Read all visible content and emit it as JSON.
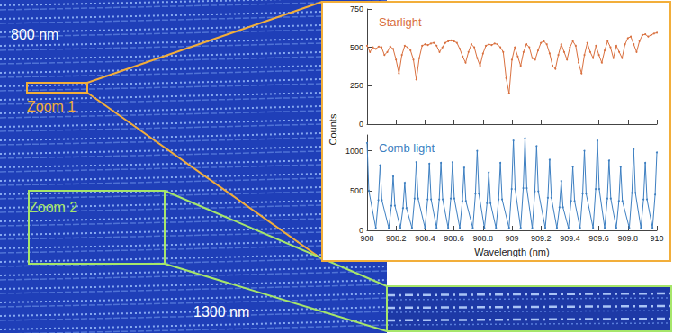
{
  "image": {
    "labels": [
      {
        "text": "800 nm",
        "color": "#ffffff"
      },
      {
        "text": "Zoom 1",
        "color": "#f2ae3a"
      },
      {
        "text": "Zoom 2",
        "color": "#a6e66a"
      },
      {
        "text": "1300 nm",
        "color": "#ffffff"
      }
    ]
  },
  "ylabel": "Counts",
  "chart_data": [
    {
      "type": "line",
      "title": "Starlight",
      "color": "#d9703f",
      "marker": "circle",
      "x": [
        908.0,
        908.02,
        908.04,
        908.06,
        908.08,
        908.1,
        908.12,
        908.14,
        908.16,
        908.18,
        908.2,
        908.22,
        908.24,
        908.26,
        908.28,
        908.3,
        908.32,
        908.34,
        908.36,
        908.38,
        908.4,
        908.42,
        908.44,
        908.46,
        908.48,
        908.5,
        908.52,
        908.54,
        908.56,
        908.58,
        908.6,
        908.62,
        908.64,
        908.66,
        908.68,
        908.7,
        908.72,
        908.74,
        908.76,
        908.78,
        908.8,
        908.82,
        908.84,
        908.86,
        908.88,
        908.9,
        908.92,
        908.94,
        908.96,
        908.98,
        909.0,
        909.02,
        909.04,
        909.06,
        909.08,
        909.1,
        909.12,
        909.14,
        909.16,
        909.18,
        909.2,
        909.22,
        909.24,
        909.26,
        909.28,
        909.3,
        909.32,
        909.34,
        909.36,
        909.38,
        909.4,
        909.42,
        909.44,
        909.46,
        909.48,
        909.5,
        909.52,
        909.54,
        909.56,
        909.58,
        909.6,
        909.62,
        909.64,
        909.66,
        909.68,
        909.7,
        909.72,
        909.74,
        909.76,
        909.78,
        909.8,
        909.82,
        909.84,
        909.86,
        909.88,
        909.9,
        909.92,
        909.94,
        909.96,
        909.98,
        910.0
      ],
      "values": [
        510,
        470,
        500,
        490,
        505,
        500,
        450,
        470,
        505,
        490,
        420,
        330,
        450,
        510,
        500,
        480,
        420,
        290,
        430,
        510,
        520,
        515,
        525,
        530,
        510,
        470,
        500,
        530,
        540,
        545,
        540,
        530,
        490,
        440,
        400,
        470,
        520,
        500,
        430,
        380,
        460,
        510,
        520,
        515,
        525,
        520,
        500,
        470,
        300,
        200,
        420,
        500,
        440,
        380,
        470,
        520,
        500,
        430,
        420,
        480,
        530,
        540,
        520,
        460,
        380,
        360,
        450,
        520,
        470,
        420,
        500,
        540,
        510,
        400,
        330,
        450,
        530,
        470,
        430,
        510,
        450,
        400,
        480,
        540,
        500,
        430,
        510,
        470,
        430,
        520,
        560,
        570,
        520,
        470,
        540,
        580,
        585,
        570,
        580,
        590,
        595
      ],
      "xlim": [
        908,
        910
      ],
      "xticks": [
        908,
        908.2,
        908.4,
        908.6,
        908.8,
        909,
        909.2,
        909.4,
        909.6,
        909.8,
        910
      ],
      "ylim": [
        0,
        750
      ],
      "yticks": [
        0,
        250,
        500,
        750
      ],
      "tick_labels": "y"
    },
    {
      "type": "line",
      "title": "Comb light",
      "color": "#3d7fc1",
      "marker": "circle",
      "xlabel": "Wavelength (nm)",
      "x": [
        908.0,
        908.012,
        908.06,
        908.078,
        908.09,
        908.102,
        908.15,
        908.168,
        908.18,
        908.192,
        908.23,
        908.248,
        908.26,
        908.272,
        908.31,
        908.328,
        908.34,
        908.352,
        908.4,
        908.418,
        908.43,
        908.442,
        908.48,
        908.498,
        908.51,
        908.522,
        908.56,
        908.578,
        908.59,
        908.602,
        908.64,
        908.658,
        908.67,
        908.682,
        908.73,
        908.748,
        908.76,
        908.772,
        908.81,
        908.828,
        908.84,
        908.852,
        908.89,
        908.908,
        908.92,
        908.932,
        908.98,
        908.998,
        909.01,
        909.022,
        909.06,
        909.078,
        909.09,
        909.102,
        909.14,
        909.158,
        909.17,
        909.182,
        909.23,
        909.248,
        909.26,
        909.272,
        909.31,
        909.328,
        909.34,
        909.352,
        909.39,
        909.408,
        909.42,
        909.432,
        909.47,
        909.488,
        909.5,
        909.512,
        909.56,
        909.578,
        909.59,
        909.602,
        909.64,
        909.658,
        909.67,
        909.682,
        909.72,
        909.738,
        909.75,
        909.762,
        909.81,
        909.828,
        909.84,
        909.852,
        909.89,
        909.908,
        909.92,
        909.932,
        909.97,
        909.988,
        910.0
      ],
      "values": [
        1100,
        500,
        30,
        380,
        820,
        380,
        30,
        310,
        680,
        310,
        30,
        280,
        600,
        280,
        30,
        400,
        860,
        400,
        30,
        390,
        840,
        390,
        30,
        390,
        850,
        390,
        30,
        400,
        860,
        400,
        30,
        370,
        790,
        370,
        30,
        460,
        1000,
        460,
        30,
        340,
        730,
        340,
        30,
        390,
        850,
        390,
        30,
        520,
        1130,
        520,
        30,
        530,
        1160,
        530,
        30,
        490,
        1060,
        490,
        30,
        410,
        890,
        410,
        30,
        290,
        620,
        290,
        30,
        370,
        800,
        370,
        30,
        460,
        1000,
        460,
        30,
        520,
        1130,
        520,
        30,
        400,
        880,
        400,
        30,
        370,
        800,
        370,
        30,
        470,
        1020,
        470,
        30,
        390,
        850,
        390,
        30,
        450,
        980
      ],
      "xlim": [
        908,
        910
      ],
      "xticks": [
        908,
        908.2,
        908.4,
        908.6,
        908.8,
        909,
        909.2,
        909.4,
        909.6,
        909.8,
        910
      ],
      "ylim": [
        0,
        1200
      ],
      "yticks": [
        0,
        500,
        1000
      ]
    }
  ]
}
